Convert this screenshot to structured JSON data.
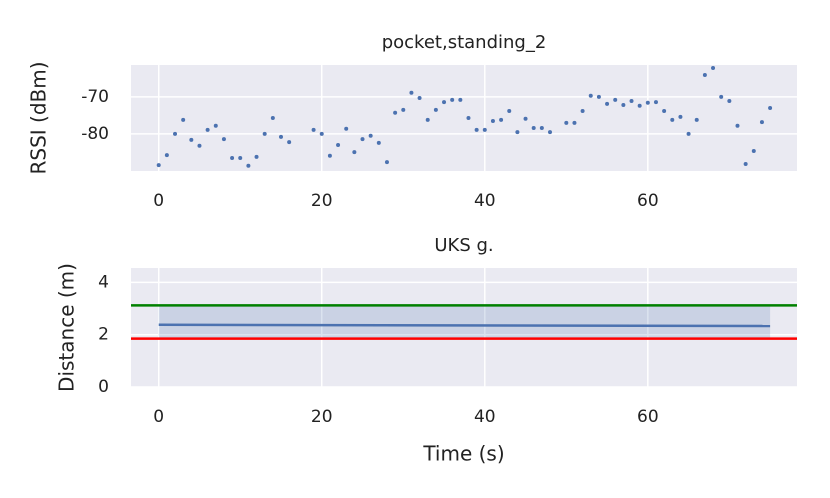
{
  "chart_data": [
    {
      "type": "scatter",
      "title": "pocket,standing_2",
      "ylabel": "RSSI (dBm)",
      "x": [
        0,
        1,
        2,
        3,
        4,
        5,
        6,
        7,
        8,
        9,
        10,
        11,
        12,
        13,
        14,
        15,
        16,
        17,
        18,
        19,
        20,
        21,
        22,
        23,
        24,
        25,
        26,
        27,
        28,
        29,
        30,
        31,
        32,
        33,
        34,
        35,
        36,
        37,
        38,
        39,
        40,
        41,
        42,
        43,
        44,
        45,
        46,
        47,
        48,
        49,
        50,
        51,
        52,
        53,
        54,
        55,
        56,
        57,
        58,
        59,
        60,
        61,
        62,
        63,
        64,
        65,
        66,
        67,
        68,
        69,
        70,
        71,
        72,
        73,
        74,
        75
      ],
      "values": [
        -88.4,
        -85.7,
        -80,
        -76.2,
        -81.6,
        -83.2,
        -78.9,
        -77.8,
        -81.4,
        -86.5,
        -86.5,
        -88.6,
        -86.2,
        -80,
        -75.7,
        -80.8,
        -82.2,
        null,
        null,
        -78.9,
        -80,
        -85.9,
        -83,
        -78.6,
        -84.9,
        -81.4,
        -80.5,
        -82.4,
        -87.6,
        -74.3,
        -73.5,
        -68.9,
        -70.3,
        -76.2,
        -73.5,
        -71.4,
        -70.8,
        -70.8,
        -75.7,
        -78.9,
        -78.9,
        -76.5,
        -76.2,
        -73.8,
        -79.5,
        -75.9,
        -78.4,
        -78.4,
        -79.5,
        null,
        -77,
        -77,
        -73.8,
        -69.7,
        -70,
        -71.9,
        -70.8,
        -72.2,
        -71.1,
        -72.4,
        -71.6,
        -71.4,
        -73.8,
        -76.2,
        -75.4,
        -80,
        -76.2,
        -64.1,
        -62.2,
        -70,
        -71.1,
        -77.8,
        -88.1,
        -84.6,
        -76.8,
        -73
      ],
      "color": "#4c72b0",
      "xlim": [
        -3.4,
        78.3
      ],
      "xticks": [
        0,
        20,
        40,
        60
      ],
      "ylim": [
        -90,
        -61.4
      ],
      "yticks": [
        -70,
        -80
      ],
      "grid": true
    },
    {
      "type": "line",
      "title": "UKS g.",
      "xlabel": "Time (s)",
      "ylabel": "Distance (m)",
      "series": [
        {
          "color": "#4c72b0",
          "x": [
            0,
            75
          ],
          "values": [
            2.38,
            2.33
          ]
        }
      ],
      "band": {
        "color": "#4c72b0",
        "x": [
          0,
          75
        ],
        "lower": [
          1.85,
          1.85
        ],
        "upper": [
          3.12,
          3.12
        ]
      },
      "hlines": [
        {
          "value": 3.12,
          "color": "#008000"
        },
        {
          "value": 1.85,
          "color": "#ff0000"
        }
      ],
      "xlim": [
        -3.4,
        78.3
      ],
      "xticks": [
        0,
        20,
        40,
        60
      ],
      "ylim": [
        0,
        4.55
      ],
      "yticks": [
        0,
        2,
        4
      ],
      "grid": true
    }
  ]
}
